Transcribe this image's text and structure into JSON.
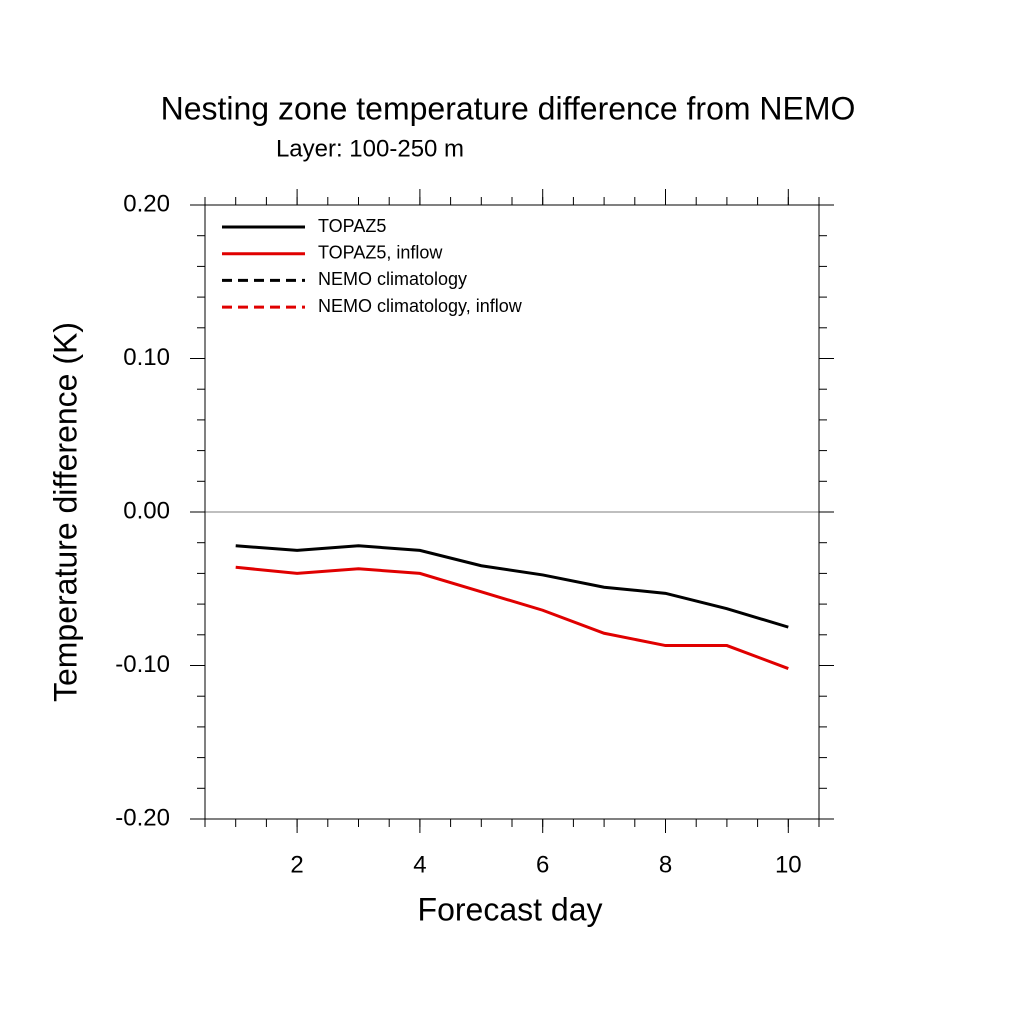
{
  "chart_data": {
    "type": "line",
    "title": "Nesting zone temperature difference from NEMO",
    "subtitle": "Layer: 100-250 m",
    "x_label": "Forecast day",
    "y_label": "Temperature difference (K)",
    "x": [
      1,
      2,
      3,
      4,
      5,
      6,
      7,
      8,
      9,
      10
    ],
    "series": [
      {
        "name": "TOPAZ5",
        "color": "#000000",
        "dashed": false,
        "values": [
          -0.022,
          -0.025,
          -0.022,
          -0.025,
          -0.035,
          -0.041,
          -0.049,
          -0.053,
          -0.063,
          -0.075
        ]
      },
      {
        "name": "TOPAZ5, inflow",
        "color": "#e00000",
        "dashed": false,
        "values": [
          -0.036,
          -0.04,
          -0.037,
          -0.04,
          -0.052,
          -0.064,
          -0.079,
          -0.087,
          -0.087,
          -0.102
        ]
      },
      {
        "name": "NEMO climatology",
        "color": "#000000",
        "dashed": true,
        "values": [
          null,
          null,
          null,
          null,
          null,
          null,
          null,
          null,
          null,
          null
        ]
      },
      {
        "name": "NEMO climatology, inflow",
        "color": "#e00000",
        "dashed": true,
        "values": [
          null,
          null,
          null,
          null,
          null,
          null,
          null,
          null,
          null,
          null
        ]
      }
    ],
    "xlim": [
      0.5,
      10.5
    ],
    "xticks": [
      2,
      4,
      6,
      8,
      10
    ],
    "ylim": [
      -0.2,
      0.2
    ],
    "yticks": [
      {
        "value": -0.2,
        "label": "-0.20"
      },
      {
        "value": -0.1,
        "label": "-0.10"
      },
      {
        "value": 0,
        "label": "0.00"
      },
      {
        "value": 0.1,
        "label": "0.10"
      },
      {
        "value": 0.2,
        "label": "0.20"
      }
    ],
    "zero_line": true,
    "legend": "top-left"
  }
}
